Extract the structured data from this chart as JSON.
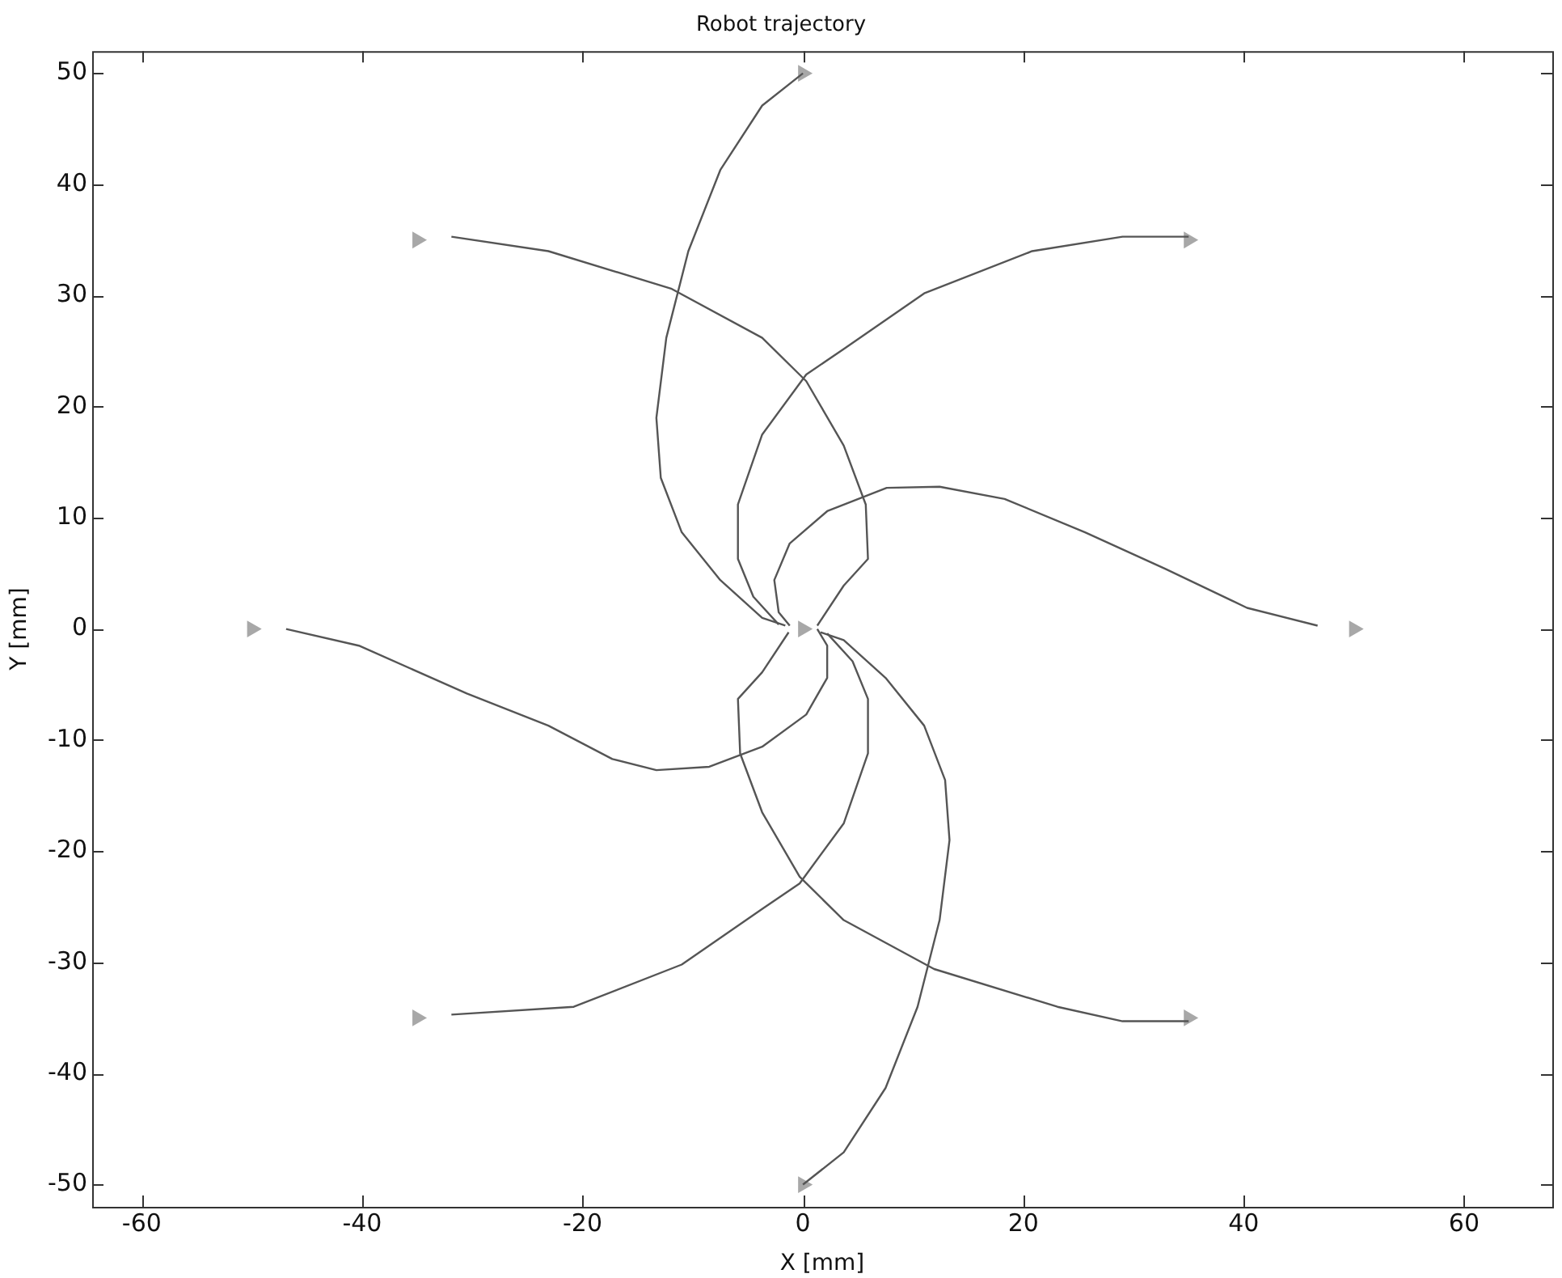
{
  "chart_data": {
    "type": "line",
    "title": "Robot trajectory",
    "xlabel": "X [mm]",
    "ylabel": "Y [mm]",
    "xlim": [
      -64.5,
      68
    ],
    "ylim": [
      -52,
      52
    ],
    "xticks": [
      -60,
      -40,
      -20,
      0,
      20,
      40,
      60
    ],
    "yticks": [
      -50,
      -40,
      -30,
      -20,
      -10,
      0,
      10,
      20,
      30,
      40,
      50
    ],
    "grid": false,
    "legend": false,
    "marker": "none",
    "line_style": "solid",
    "series": [
      {
        "color": "#555555",
        "x": [
          0,
          -3.7,
          -7.5,
          -10.4,
          -12.4,
          -13.3,
          -12.9,
          -11,
          -7.5,
          -3.7,
          -1.6
        ],
        "values": [
          50,
          47.1,
          41.3,
          34,
          26.2,
          19,
          13.6,
          8.7,
          4.4,
          1,
          0.3
        ]
      },
      {
        "color": "#555555",
        "x": [
          -31.9,
          -23.1,
          -11.9,
          -3.7,
          0.3,
          3.7,
          5.7,
          5.9,
          3.7,
          1.3
        ],
        "values": [
          35.3,
          34,
          30.6,
          26.2,
          22.3,
          16.5,
          11.2,
          6.3,
          3.9,
          0.3
        ]
      },
      {
        "color": "#555555",
        "x": [
          35,
          29,
          20.8,
          11,
          3.7,
          0.3,
          -3.7,
          -5.9,
          -5.9,
          -4.5,
          -2.2
        ],
        "values": [
          35.3,
          35.3,
          34,
          30.2,
          25.2,
          22.9,
          17.5,
          11.2,
          6.3,
          2.9,
          0.4
        ]
      },
      {
        "color": "#555555",
        "x": [
          46.7,
          40.3,
          32.9,
          25.6,
          18.3,
          12.4,
          7.6,
          2.2,
          -1.2,
          -2.6,
          -2.2,
          -1.2
        ],
        "values": [
          0.3,
          1.9,
          5.4,
          8.7,
          11.7,
          12.8,
          12.7,
          10.6,
          7.7,
          4.4,
          1.5,
          0.3
        ]
      },
      {
        "color": "#555555",
        "x": [
          -46.9,
          -40.3,
          -30.5,
          -23.1,
          -17.3,
          -13.3,
          -8.5,
          -3.7,
          0.3,
          2.2,
          2.2,
          1.3
        ],
        "values": [
          0,
          -1.5,
          -5.8,
          -8.7,
          -11.7,
          -12.7,
          -12.4,
          -10.6,
          -7.7,
          -4.4,
          -1.5,
          0
        ]
      },
      {
        "color": "#555555",
        "x": [
          -31.9,
          -20.8,
          -11,
          -3.7,
          -0.3,
          3.7,
          5.9,
          5.9,
          4.5,
          2.2
        ],
        "values": [
          -34.7,
          -34,
          -30.2,
          -25.2,
          -22.9,
          -17.5,
          -11.2,
          -6.3,
          -2.9,
          -0.4
        ]
      },
      {
        "color": "#555555",
        "x": [
          35,
          29,
          23.1,
          11.9,
          3.7,
          -0.3,
          -3.7,
          -5.7,
          -5.9,
          -3.7,
          -1.3
        ],
        "values": [
          -35.3,
          -35.3,
          -34,
          -30.6,
          -26.2,
          -22.3,
          -16.5,
          -11.2,
          -6.3,
          -3.9,
          -0.3
        ]
      },
      {
        "color": "#555555",
        "x": [
          0,
          3.7,
          7.5,
          10.4,
          12.4,
          13.3,
          12.9,
          11,
          7.5,
          3.7,
          1.6
        ],
        "values": [
          -50,
          -47.1,
          -41.3,
          -34,
          -26.2,
          -19,
          -13.6,
          -8.7,
          -4.4,
          -1,
          -0.3
        ]
      },
      {
        "type": "scatter",
        "marker": "triangle",
        "color": "#a8a8a8",
        "x": [
          0,
          -35,
          35,
          50,
          -50,
          -35,
          35,
          0,
          0
        ],
        "values": [
          50,
          35,
          35,
          0,
          0,
          -35,
          -35,
          -50,
          0
        ]
      }
    ]
  }
}
